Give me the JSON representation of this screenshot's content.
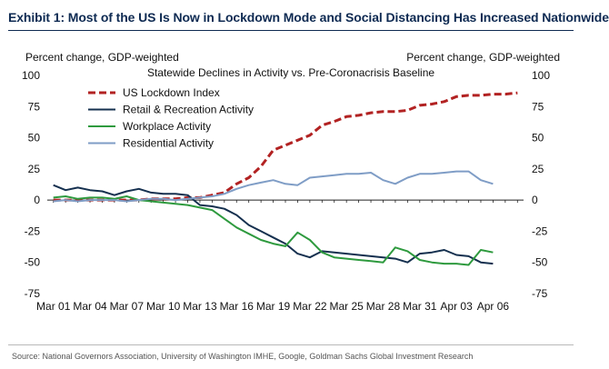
{
  "header": {
    "title": "Exhibit 1: Most of the US Is Now in Lockdown Mode and Social Distancing Has Increased Nationwide"
  },
  "chart_data": {
    "type": "line",
    "title": "Statewide Declines in Activity vs. Pre-Coronacrisis Baseline",
    "ylabel_left": "Percent change, GDP-weighted",
    "ylabel_right": "Percent change, GDP-weighted",
    "ylim": [
      -75,
      100
    ],
    "yticks": [
      -75,
      -50,
      -25,
      0,
      25,
      50,
      75,
      100
    ],
    "x_start_day": 1,
    "x_end_day": 39,
    "x_ticks": [
      {
        "day": 1,
        "label": "Mar 01"
      },
      {
        "day": 4,
        "label": "Mar 04"
      },
      {
        "day": 7,
        "label": "Mar 07"
      },
      {
        "day": 10,
        "label": "Mar 10"
      },
      {
        "day": 13,
        "label": "Mar 13"
      },
      {
        "day": 16,
        "label": "Mar 16"
      },
      {
        "day": 19,
        "label": "Mar 19"
      },
      {
        "day": 22,
        "label": "Mar 22"
      },
      {
        "day": 25,
        "label": "Mar 25"
      },
      {
        "day": 28,
        "label": "Mar 28"
      },
      {
        "day": 31,
        "label": "Mar 31"
      },
      {
        "day": 34,
        "label": "Apr 03"
      },
      {
        "day": 37,
        "label": "Apr 06"
      }
    ],
    "legend_position": "top-left",
    "series": [
      {
        "name": "US Lockdown Index",
        "color": "#b22222",
        "dash": true,
        "points": [
          [
            1,
            0
          ],
          [
            2,
            0
          ],
          [
            3,
            0
          ],
          [
            4,
            0
          ],
          [
            5,
            0
          ],
          [
            6,
            0
          ],
          [
            7,
            0
          ],
          [
            8,
            0
          ],
          [
            9,
            1
          ],
          [
            10,
            1
          ],
          [
            11,
            1
          ],
          [
            12,
            2
          ],
          [
            13,
            2
          ],
          [
            14,
            4
          ],
          [
            15,
            6
          ],
          [
            16,
            13
          ],
          [
            17,
            18
          ],
          [
            18,
            27
          ],
          [
            19,
            40
          ],
          [
            20,
            44
          ],
          [
            21,
            48
          ],
          [
            22,
            52
          ],
          [
            23,
            60
          ],
          [
            24,
            63
          ],
          [
            25,
            67
          ],
          [
            26,
            68
          ],
          [
            27,
            70
          ],
          [
            28,
            71
          ],
          [
            29,
            71
          ],
          [
            30,
            72
          ],
          [
            31,
            76
          ],
          [
            32,
            77
          ],
          [
            33,
            79
          ],
          [
            34,
            83
          ],
          [
            35,
            84
          ],
          [
            36,
            84
          ],
          [
            37,
            85
          ],
          [
            38,
            85
          ],
          [
            39,
            86
          ]
        ]
      },
      {
        "name": "Retail & Recreation Activity",
        "color": "#15304f",
        "dash": false,
        "points": [
          [
            1,
            12
          ],
          [
            2,
            8
          ],
          [
            3,
            10
          ],
          [
            4,
            8
          ],
          [
            5,
            7
          ],
          [
            6,
            4
          ],
          [
            7,
            7
          ],
          [
            8,
            9
          ],
          [
            9,
            6
          ],
          [
            10,
            5
          ],
          [
            11,
            5
          ],
          [
            12,
            4
          ],
          [
            13,
            -4
          ],
          [
            14,
            -5
          ],
          [
            15,
            -7
          ],
          [
            16,
            -12
          ],
          [
            17,
            -20
          ],
          [
            18,
            -25
          ],
          [
            19,
            -30
          ],
          [
            20,
            -35
          ],
          [
            21,
            -43
          ],
          [
            22,
            -46
          ],
          [
            23,
            -41
          ],
          [
            24,
            -42
          ],
          [
            25,
            -43
          ],
          [
            26,
            -44
          ],
          [
            27,
            -45
          ],
          [
            28,
            -46
          ],
          [
            29,
            -47
          ],
          [
            30,
            -50
          ],
          [
            31,
            -43
          ],
          [
            32,
            -42
          ],
          [
            33,
            -40
          ],
          [
            34,
            -44
          ],
          [
            35,
            -45
          ],
          [
            36,
            -50
          ],
          [
            37,
            -51
          ]
        ]
      },
      {
        "name": "Workplace Activity",
        "color": "#2e9a3e",
        "dash": false,
        "points": [
          [
            1,
            2
          ],
          [
            2,
            3
          ],
          [
            3,
            1
          ],
          [
            4,
            2
          ],
          [
            5,
            2
          ],
          [
            6,
            1
          ],
          [
            7,
            3
          ],
          [
            8,
            0
          ],
          [
            9,
            -1
          ],
          [
            10,
            -2
          ],
          [
            11,
            -3
          ],
          [
            12,
            -4
          ],
          [
            13,
            -6
          ],
          [
            14,
            -8
          ],
          [
            15,
            -15
          ],
          [
            16,
            -22
          ],
          [
            17,
            -27
          ],
          [
            18,
            -32
          ],
          [
            19,
            -35
          ],
          [
            20,
            -37
          ],
          [
            21,
            -26
          ],
          [
            22,
            -32
          ],
          [
            23,
            -42
          ],
          [
            24,
            -46
          ],
          [
            25,
            -47
          ],
          [
            26,
            -48
          ],
          [
            27,
            -49
          ],
          [
            28,
            -50
          ],
          [
            29,
            -38
          ],
          [
            30,
            -41
          ],
          [
            31,
            -48
          ],
          [
            32,
            -50
          ],
          [
            33,
            -51
          ],
          [
            34,
            -51
          ],
          [
            35,
            -52
          ],
          [
            36,
            -40
          ],
          [
            37,
            -42
          ]
        ]
      },
      {
        "name": "Residential Activity",
        "color": "#7f9dc6",
        "dash": false,
        "points": [
          [
            1,
            -1
          ],
          [
            2,
            0
          ],
          [
            3,
            -1
          ],
          [
            4,
            0
          ],
          [
            5,
            0
          ],
          [
            6,
            0
          ],
          [
            7,
            -1
          ],
          [
            8,
            0
          ],
          [
            9,
            1
          ],
          [
            10,
            1
          ],
          [
            11,
            0
          ],
          [
            12,
            1
          ],
          [
            13,
            2
          ],
          [
            14,
            3
          ],
          [
            15,
            5
          ],
          [
            16,
            9
          ],
          [
            17,
            12
          ],
          [
            18,
            14
          ],
          [
            19,
            16
          ],
          [
            20,
            13
          ],
          [
            21,
            12
          ],
          [
            22,
            18
          ],
          [
            23,
            19
          ],
          [
            24,
            20
          ],
          [
            25,
            21
          ],
          [
            26,
            21
          ],
          [
            27,
            22
          ],
          [
            28,
            16
          ],
          [
            29,
            13
          ],
          [
            30,
            18
          ],
          [
            31,
            21
          ],
          [
            32,
            21
          ],
          [
            33,
            22
          ],
          [
            34,
            23
          ],
          [
            35,
            23
          ],
          [
            36,
            16
          ],
          [
            37,
            13
          ]
        ]
      }
    ]
  },
  "footer": {
    "source": "Source: National Governors Association, University of Washington IMHE, Google, Goldman Sachs Global Investment Research"
  }
}
